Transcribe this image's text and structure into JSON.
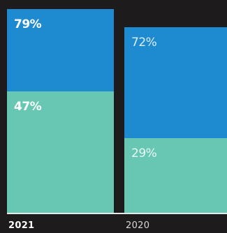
{
  "chart_data": {
    "type": "bar",
    "stacked": false,
    "categories": [
      "2021",
      "2020"
    ],
    "series": [
      {
        "values": [
          79,
          72
        ],
        "labels": [
          "79%",
          "72%"
        ],
        "color": "#1e8bd0"
      },
      {
        "values": [
          47,
          29
        ],
        "labels": [
          "47%",
          "29%"
        ],
        "color": "#67c7b2"
      }
    ],
    "ylim": [
      0,
      100
    ],
    "emphasis": [
      "bold",
      "light"
    ],
    "grid": false,
    "legend": "none"
  },
  "colors": {
    "background": "#1e1b1c",
    "baseline": "#e9e9e9"
  }
}
